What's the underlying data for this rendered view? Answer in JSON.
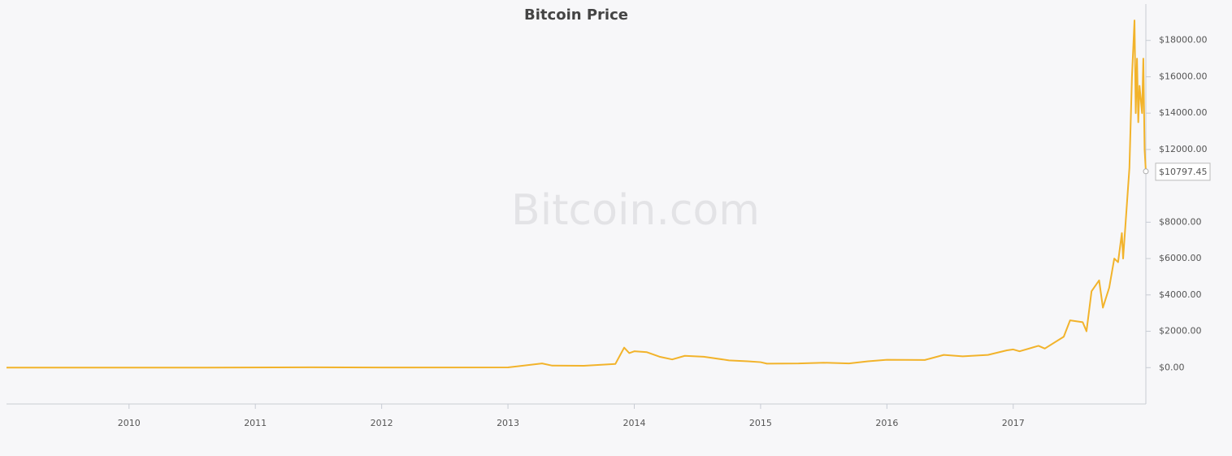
{
  "chart_data": {
    "type": "line",
    "title": "Bitcoin Price",
    "watermark": "Bitcoin.com",
    "xlim": [
      2009.03,
      2018.05
    ],
    "xticks": [
      2010,
      2011,
      2012,
      2013,
      2014,
      2015,
      2016,
      2017
    ],
    "ylim": [
      -2000,
      20000
    ],
    "yticks": [
      {
        "value": 0,
        "label": "$0.00"
      },
      {
        "value": 2000,
        "label": "$2000.00"
      },
      {
        "value": 4000,
        "label": "$4000.00"
      },
      {
        "value": 6000,
        "label": "$6000.00"
      },
      {
        "value": 8000,
        "label": "$8000.00"
      },
      {
        "value": 12000,
        "label": "$12000.00"
      },
      {
        "value": 14000,
        "label": "$14000.00"
      },
      {
        "value": 16000,
        "label": "$16000.00"
      },
      {
        "value": 18000,
        "label": "$18000.00"
      }
    ],
    "y_axis_side": "right",
    "grid": false,
    "last_price": {
      "value": 10797.45,
      "label": "$10797.45"
    },
    "series": [
      {
        "name": "Bitcoin Price",
        "color": "#f2b32b",
        "x": [
          2009.03,
          2010.5,
          2011.45,
          2012.0,
          2013.0,
          2013.27,
          2013.35,
          2013.6,
          2013.85,
          2013.92,
          2013.96,
          2014.0,
          2014.1,
          2014.2,
          2014.3,
          2014.4,
          2014.55,
          2014.75,
          2014.9,
          2015.0,
          2015.05,
          2015.3,
          2015.5,
          2015.7,
          2015.85,
          2016.0,
          2016.3,
          2016.45,
          2016.6,
          2016.8,
          2016.95,
          2017.0,
          2017.05,
          2017.2,
          2017.25,
          2017.4,
          2017.45,
          2017.55,
          2017.58,
          2017.62,
          2017.68,
          2017.71,
          2017.76,
          2017.8,
          2017.83,
          2017.86,
          2017.87,
          2017.89,
          2017.92,
          2017.94,
          2017.96,
          2017.97,
          2017.98,
          2017.99,
          2018.0,
          2018.02,
          2018.03,
          2018.04,
          2018.05
        ],
        "values": [
          0,
          0,
          20,
          5,
          13,
          230,
          110,
          100,
          200,
          1100,
          800,
          900,
          850,
          600,
          450,
          650,
          600,
          400,
          350,
          300,
          220,
          230,
          270,
          230,
          350,
          430,
          420,
          700,
          620,
          700,
          950,
          1000,
          900,
          1200,
          1050,
          1700,
          2600,
          2500,
          2000,
          4200,
          4800,
          3300,
          4400,
          6000,
          5800,
          7400,
          6000,
          8000,
          11000,
          16000,
          19100,
          14000,
          17000,
          13500,
          15500,
          14000,
          17000,
          12000,
          10797.45
        ]
      }
    ]
  }
}
